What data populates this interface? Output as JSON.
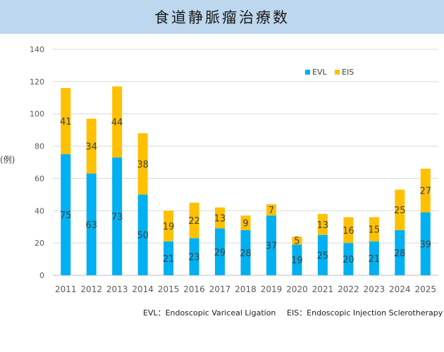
{
  "title": "食道静脈瘤治療数",
  "chart_data": {
    "type": "bar",
    "stacked": true,
    "ylabel": "(例)",
    "ylim": [
      0,
      140
    ],
    "yticks": [
      0,
      20,
      40,
      60,
      80,
      100,
      120,
      140
    ],
    "grid": true,
    "legend_position": "top-right",
    "categories": [
      "2011",
      "2012",
      "2013",
      "2014",
      "2015",
      "2016",
      "2017",
      "2018",
      "2019",
      "2020",
      "2021",
      "2022",
      "2023",
      "2024",
      "2025"
    ],
    "series": [
      {
        "name": "EVL",
        "color": "#00b0f0",
        "values": [
          75,
          63,
          73,
          50,
          21,
          23,
          29,
          28,
          37,
          19,
          25,
          20,
          21,
          28,
          39
        ]
      },
      {
        "name": "EIS",
        "color": "#ffc000",
        "values": [
          41,
          34,
          44,
          38,
          19,
          22,
          13,
          9,
          7,
          5,
          13,
          16,
          15,
          25,
          27
        ]
      }
    ]
  },
  "notes": {
    "evl": "EVL：Endoscopic Variceal Ligation",
    "eis": "EIS：Endoscopic Injection Sclerotherapy"
  }
}
